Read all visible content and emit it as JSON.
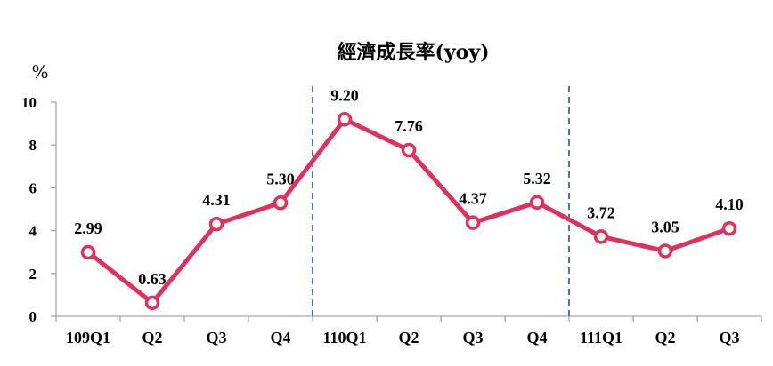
{
  "chart_data": {
    "type": "line",
    "title": "經濟成長率(yoy)",
    "ylabel": "%",
    "xlabel": "",
    "ylim": [
      0,
      10
    ],
    "yticks": [
      "0",
      "2",
      "4",
      "6",
      "8",
      "10"
    ],
    "categories": [
      "109Q1",
      "Q2",
      "Q3",
      "Q4",
      "110Q1",
      "Q2",
      "Q3",
      "Q4",
      "111Q1",
      "Q2",
      "Q3"
    ],
    "series": [
      {
        "values": [
          2.99,
          0.63,
          4.31,
          5.3,
          9.2,
          7.76,
          4.37,
          5.32,
          3.72,
          3.05,
          4.1
        ],
        "labels": [
          "2.99",
          "0.63",
          "4.31",
          "5.30",
          "9.20",
          "7.76",
          "4.37",
          "5.32",
          "3.72",
          "3.05",
          "4.10"
        ]
      }
    ],
    "year_dividers_after_index": [
      3,
      7
    ],
    "grid": false,
    "legend": "none",
    "colors": {
      "line": "#e0305e",
      "marker_fill": "#ffffff",
      "divider": "#4a78b8",
      "axis": "#a6a6a6"
    }
  }
}
